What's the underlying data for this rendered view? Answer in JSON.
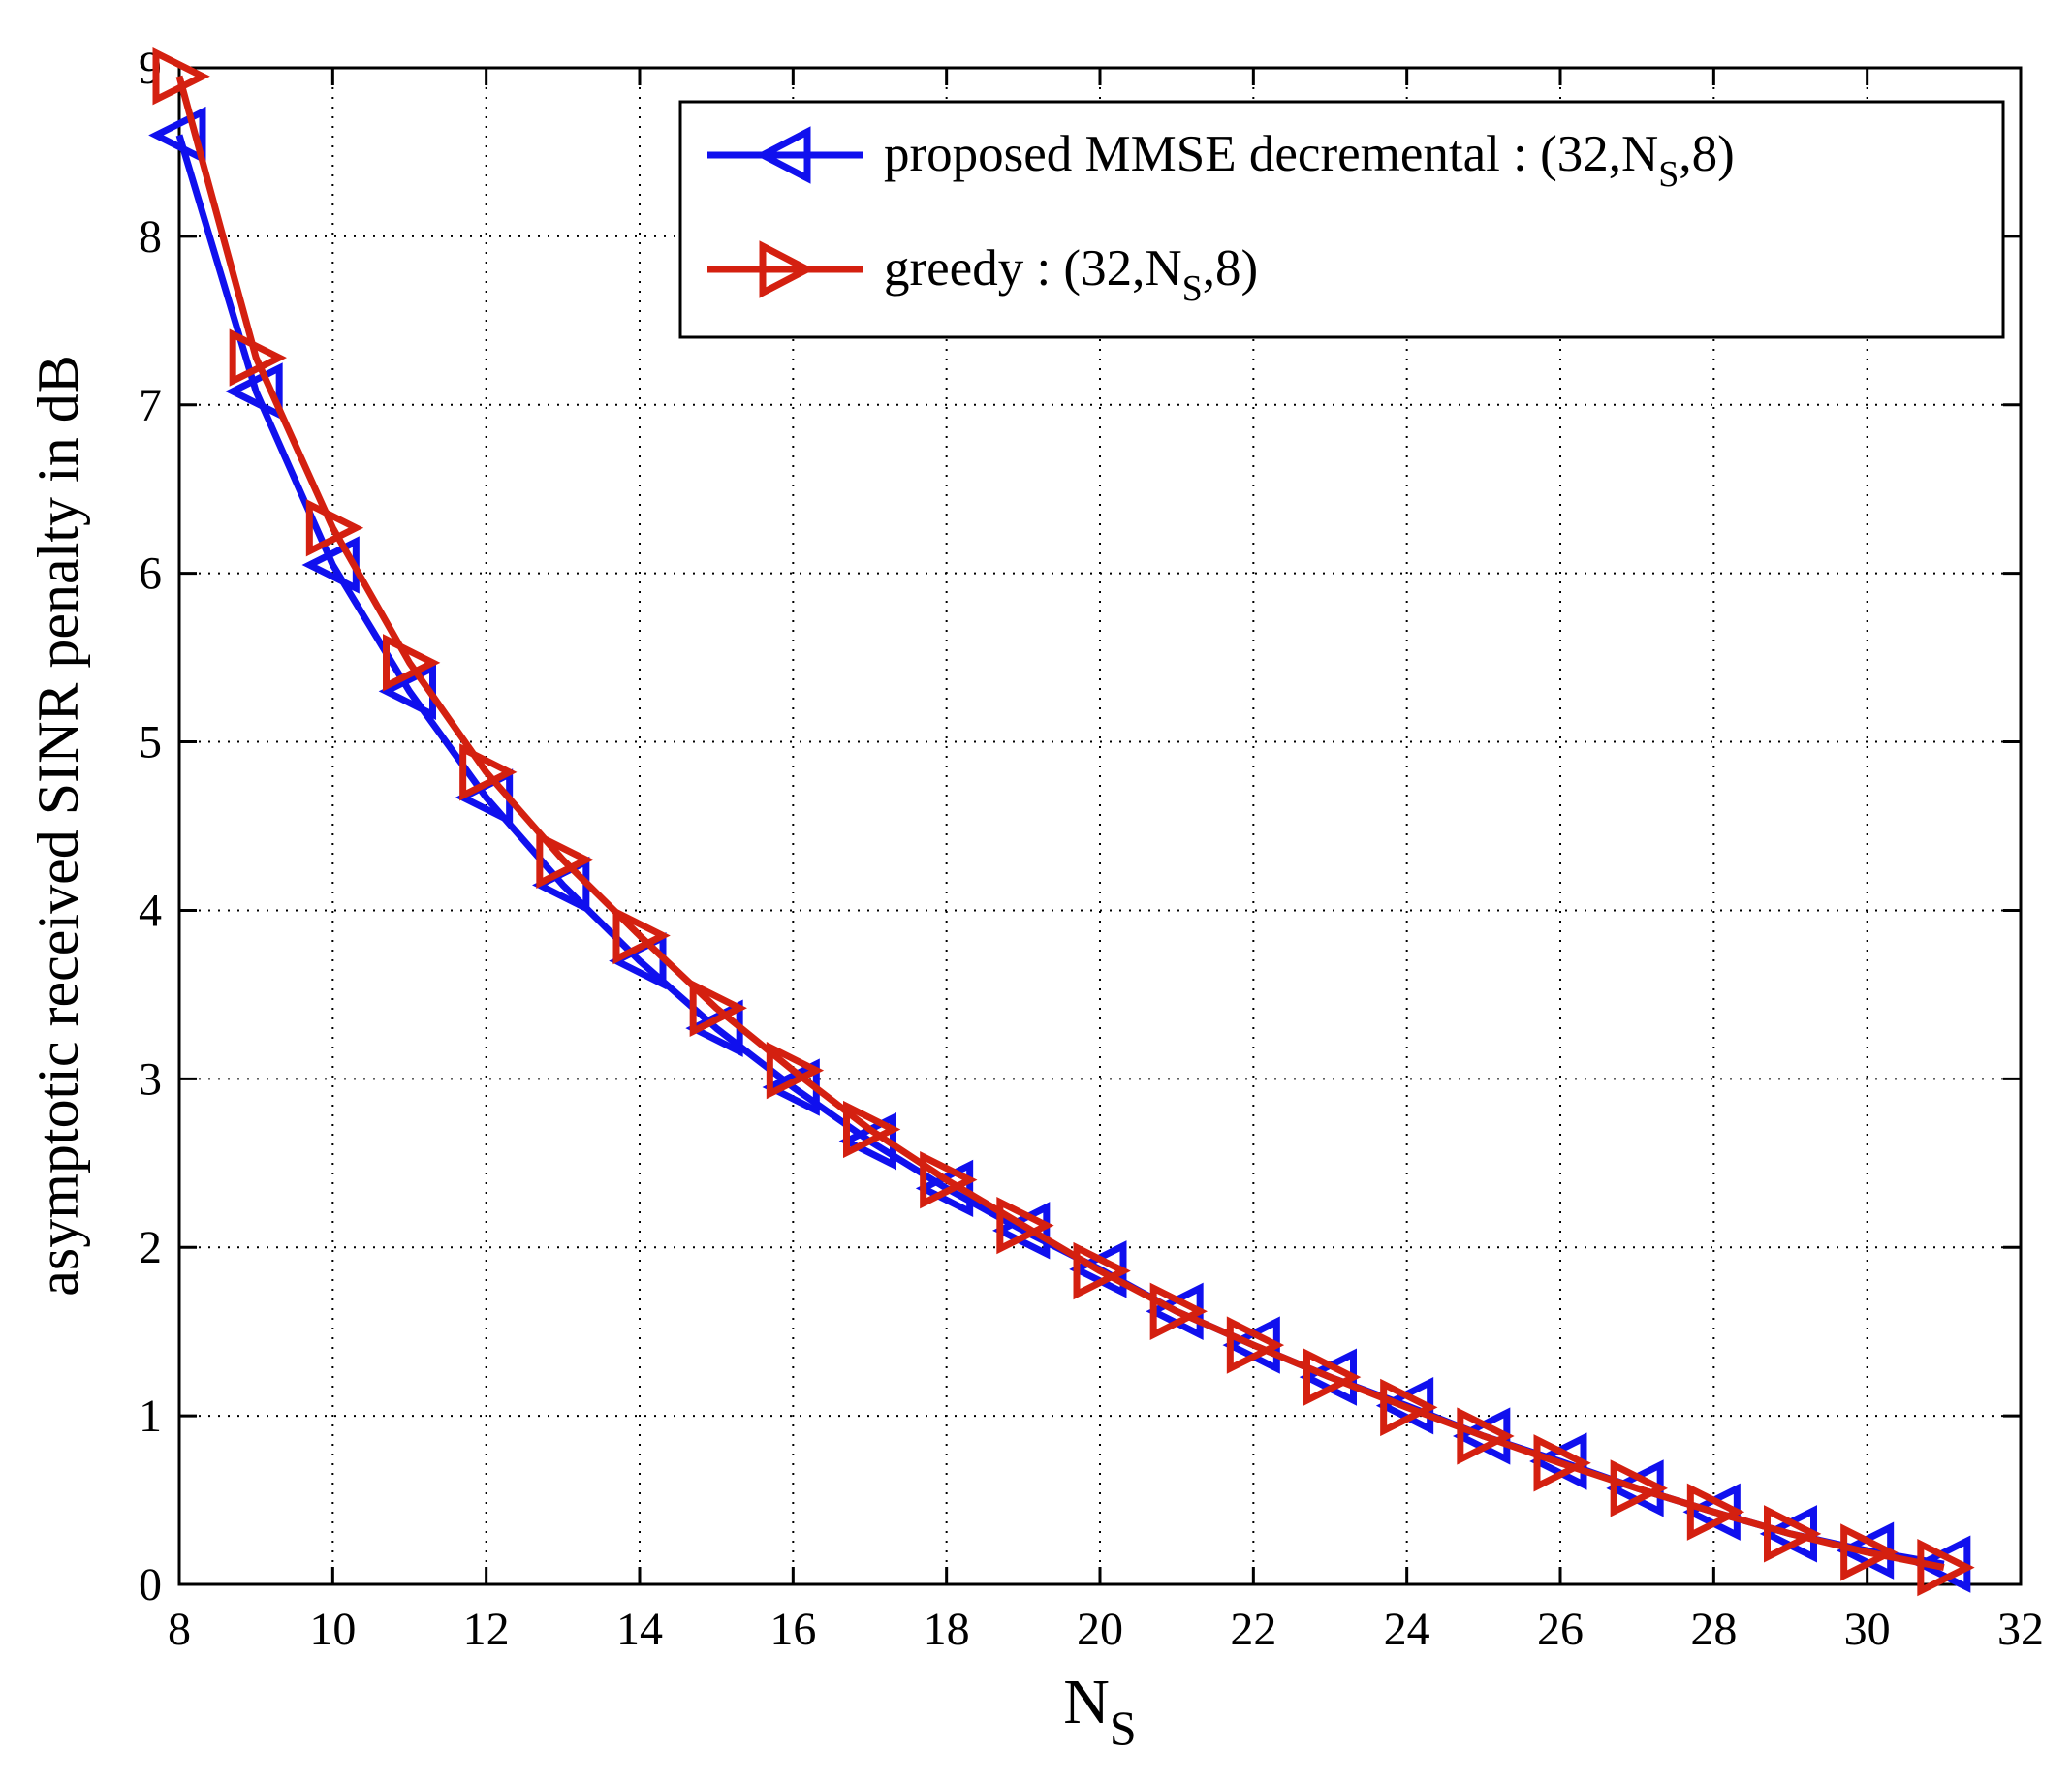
{
  "chart_data": {
    "type": "line",
    "xlabel": "N",
    "xlabel_sub": "S",
    "ylabel": "asymptotic received SINR penalty in dB",
    "xlim": [
      8,
      32
    ],
    "ylim": [
      0,
      9
    ],
    "xticks": [
      "8",
      "10",
      "12",
      "14",
      "16",
      "18",
      "20",
      "22",
      "24",
      "26",
      "28",
      "30",
      "32"
    ],
    "yticks": [
      "0",
      "1",
      "2",
      "3",
      "4",
      "5",
      "6",
      "7",
      "8",
      "9"
    ],
    "grid": true,
    "legend_position": "top-right",
    "series": [
      {
        "name": "proposed MMSE decremental : (32,N_S,8)",
        "legend_prefix": "proposed MMSE decremental : (32,N",
        "legend_sub": "S",
        "legend_suffix": ",8)",
        "color": "#1010ee",
        "marker": "triangle-left",
        "x": [
          8,
          9,
          10,
          11,
          12,
          13,
          14,
          15,
          16,
          17,
          18,
          19,
          20,
          21,
          22,
          23,
          24,
          25,
          26,
          27,
          28,
          29,
          30,
          31
        ],
        "y": [
          8.6,
          7.08,
          6.05,
          5.3,
          4.67,
          4.15,
          3.7,
          3.3,
          2.95,
          2.63,
          2.35,
          2.1,
          1.87,
          1.62,
          1.42,
          1.23,
          1.06,
          0.88,
          0.73,
          0.57,
          0.43,
          0.3,
          0.2,
          0.12
        ]
      },
      {
        "name": "greedy : (32,N_S,8)",
        "legend_prefix": "greedy : (32,N",
        "legend_sub": "S",
        "legend_suffix": ",8)",
        "color": "#d42010",
        "marker": "triangle-right",
        "x": [
          8,
          9,
          10,
          11,
          12,
          13,
          14,
          15,
          16,
          17,
          18,
          19,
          20,
          21,
          22,
          23,
          24,
          25,
          26,
          27,
          28,
          29,
          30,
          31
        ],
        "y": [
          8.95,
          7.28,
          6.27,
          5.47,
          4.82,
          4.3,
          3.85,
          3.42,
          3.05,
          2.7,
          2.4,
          2.13,
          1.86,
          1.62,
          1.42,
          1.23,
          1.05,
          0.88,
          0.72,
          0.57,
          0.43,
          0.3,
          0.19,
          0.1
        ]
      }
    ]
  }
}
